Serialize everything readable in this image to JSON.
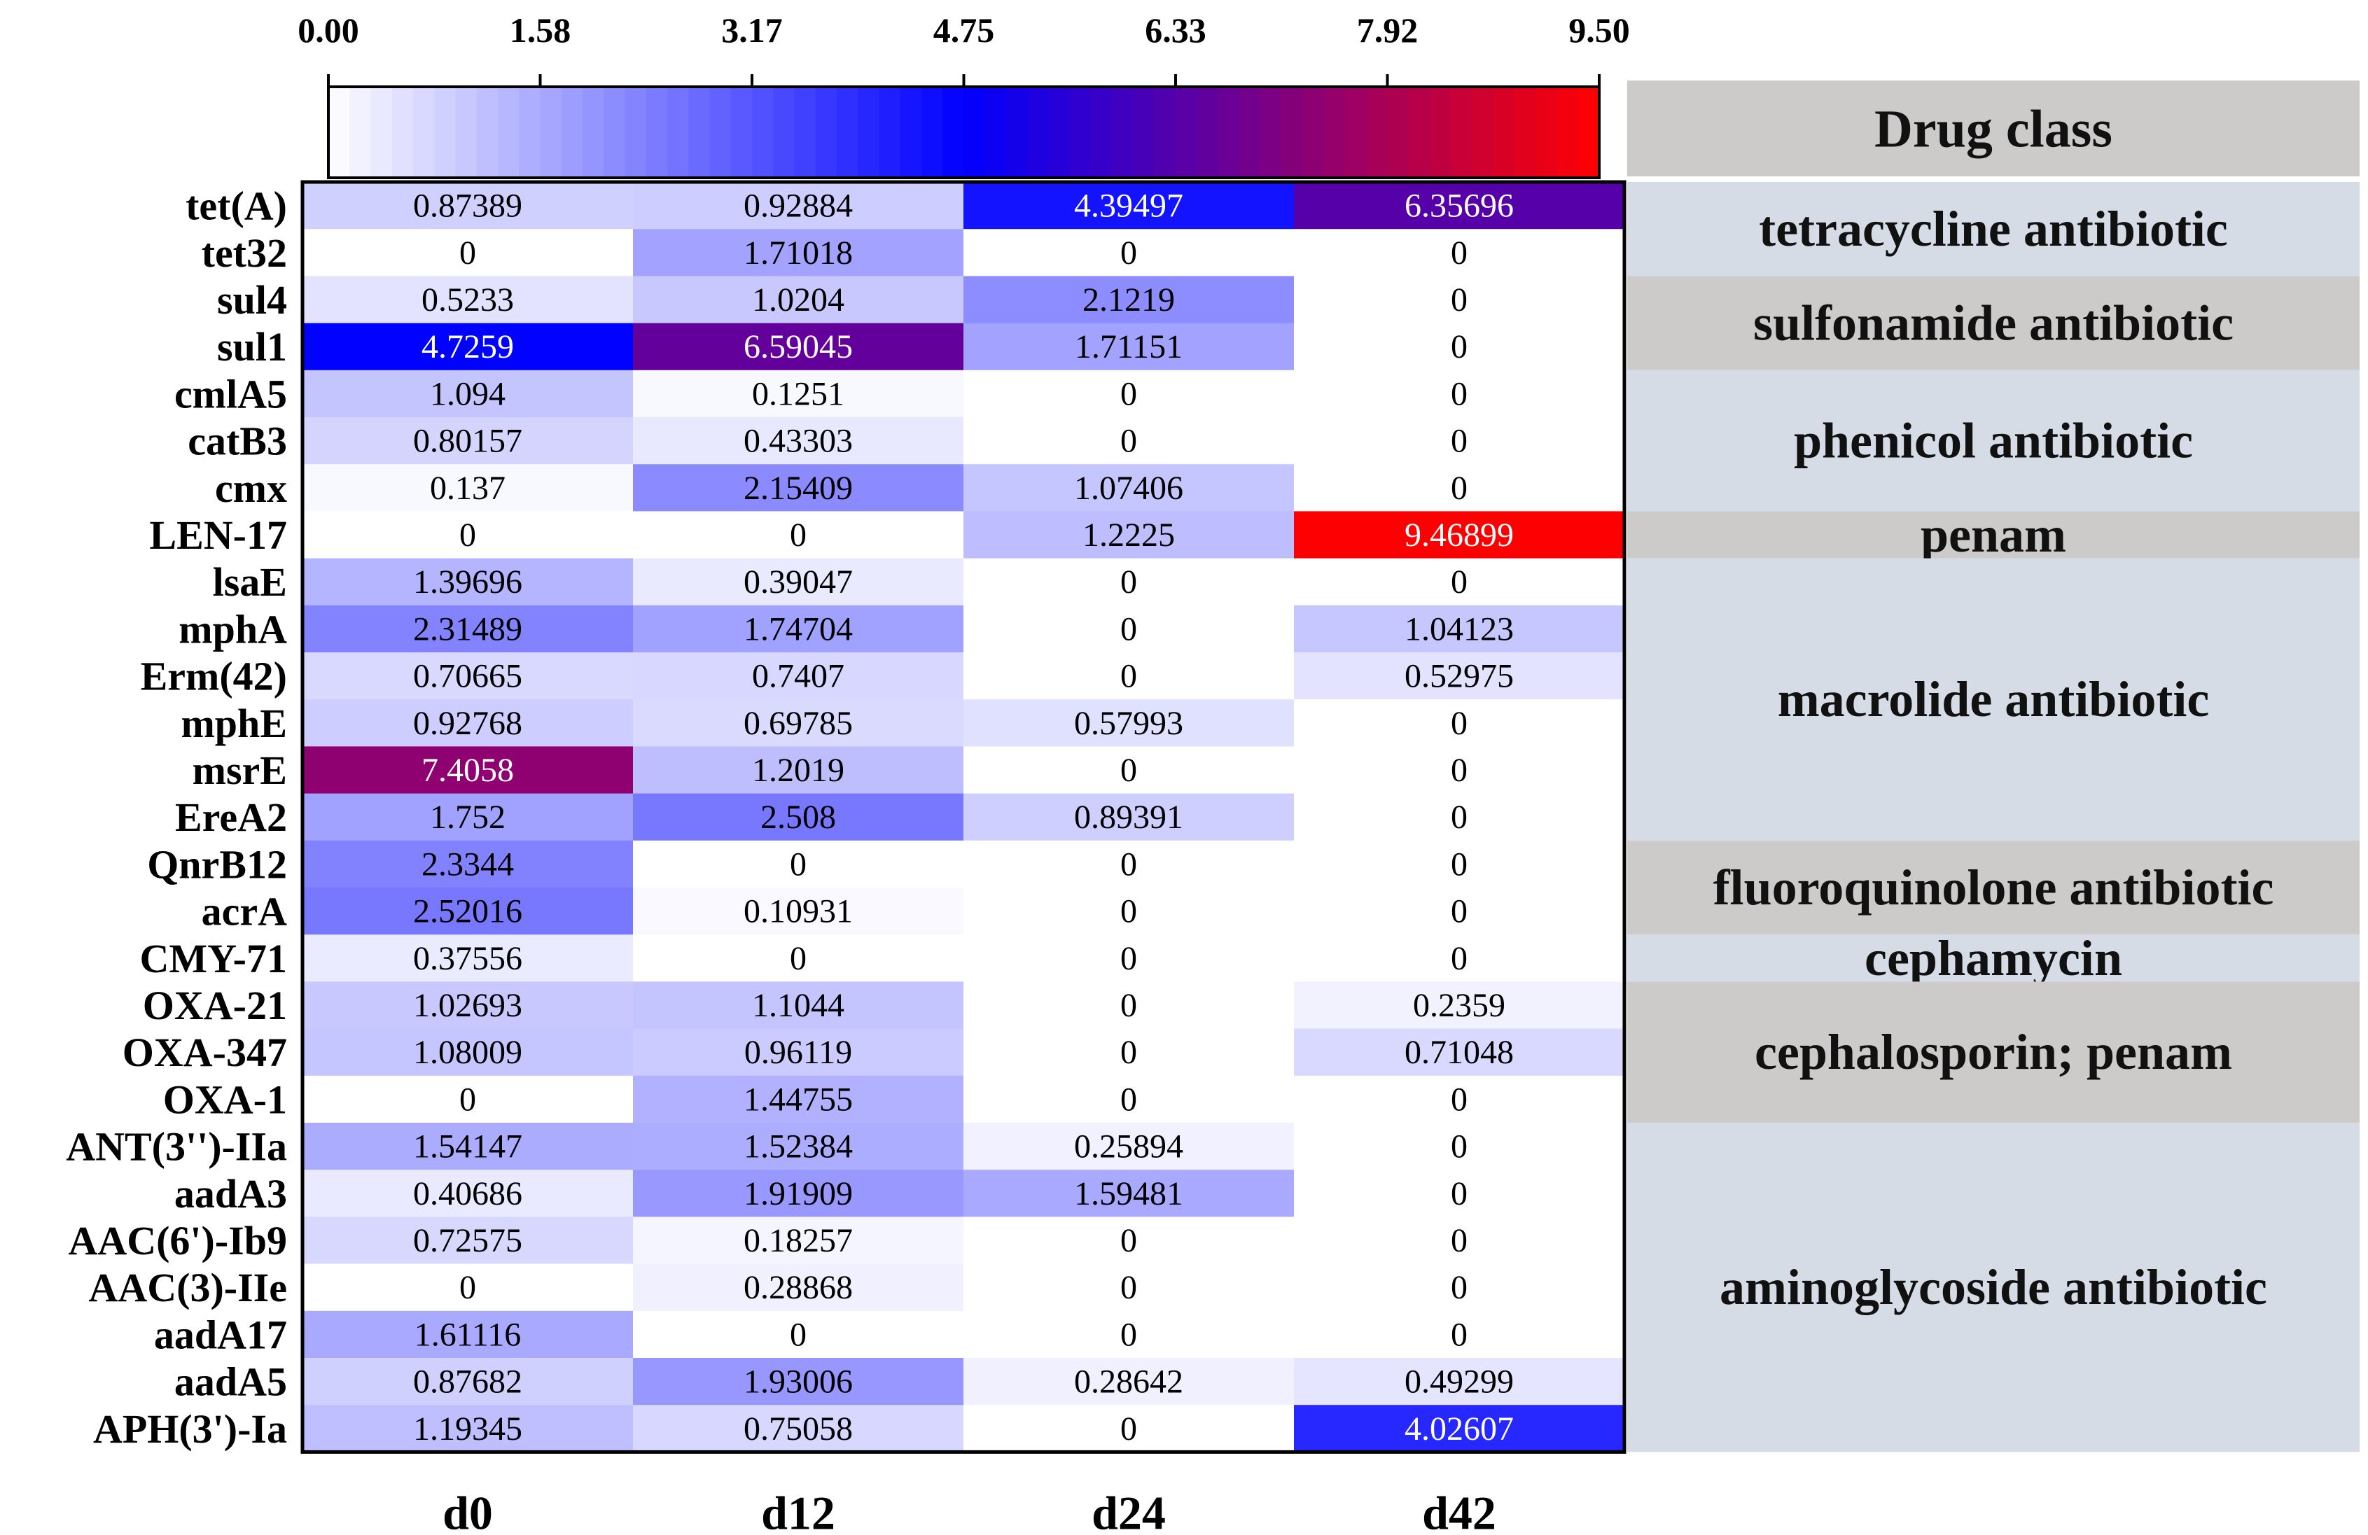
{
  "chart_data": {
    "type": "heatmap",
    "title": "",
    "columns": [
      "d0",
      "d12",
      "d24",
      "d42"
    ],
    "rows": [
      {
        "gene": "tet(A)",
        "values": [
          "0.87389",
          "0.92884",
          "4.39497",
          "6.35696"
        ]
      },
      {
        "gene": "tet32",
        "values": [
          "0",
          "1.71018",
          "0",
          "0"
        ]
      },
      {
        "gene": "sul4",
        "values": [
          "0.5233",
          "1.0204",
          "2.1219",
          "0"
        ]
      },
      {
        "gene": "sul1",
        "values": [
          "4.7259",
          "6.59045",
          "1.71151",
          "0"
        ]
      },
      {
        "gene": "cmlA5",
        "values": [
          "1.094",
          "0.1251",
          "0",
          "0"
        ]
      },
      {
        "gene": "catB3",
        "values": [
          "0.80157",
          "0.43303",
          "0",
          "0"
        ]
      },
      {
        "gene": "cmx",
        "values": [
          "0.137",
          "2.15409",
          "1.07406",
          "0"
        ]
      },
      {
        "gene": "LEN-17",
        "values": [
          "0",
          "0",
          "1.2225",
          "9.46899"
        ]
      },
      {
        "gene": "lsaE",
        "values": [
          "1.39696",
          "0.39047",
          "0",
          "0"
        ]
      },
      {
        "gene": "mphA",
        "values": [
          "2.31489",
          "1.74704",
          "0",
          "1.04123"
        ]
      },
      {
        "gene": "Erm(42)",
        "values": [
          "0.70665",
          "0.7407",
          "0",
          "0.52975"
        ]
      },
      {
        "gene": "mphE",
        "values": [
          "0.92768",
          "0.69785",
          "0.57993",
          "0"
        ]
      },
      {
        "gene": "msrE",
        "values": [
          "7.4058",
          "1.2019",
          "0",
          "0"
        ]
      },
      {
        "gene": "EreA2",
        "values": [
          "1.752",
          "2.508",
          "0.89391",
          "0"
        ]
      },
      {
        "gene": "QnrB12",
        "values": [
          "2.3344",
          "0",
          "0",
          "0"
        ]
      },
      {
        "gene": "acrA",
        "values": [
          "2.52016",
          "0.10931",
          "0",
          "0"
        ]
      },
      {
        "gene": "CMY-71",
        "values": [
          "0.37556",
          "0",
          "0",
          "0"
        ]
      },
      {
        "gene": "OXA-21",
        "values": [
          "1.02693",
          "1.1044",
          "0",
          "0.2359"
        ]
      },
      {
        "gene": "OXA-347",
        "values": [
          "1.08009",
          "0.96119",
          "0",
          "0.71048"
        ]
      },
      {
        "gene": "OXA-1",
        "values": [
          "0",
          "1.44755",
          "0",
          "0"
        ]
      },
      {
        "gene": "ANT(3'')-IIa",
        "values": [
          "1.54147",
          "1.52384",
          "0.25894",
          "0"
        ]
      },
      {
        "gene": "aadA3",
        "values": [
          "0.40686",
          "1.91909",
          "1.59481",
          "0"
        ]
      },
      {
        "gene": "AAC(6')-Ib9",
        "values": [
          "0.72575",
          "0.18257",
          "0",
          "0"
        ]
      },
      {
        "gene": "AAC(3)-IIe",
        "values": [
          "0",
          "0.28868",
          "0",
          "0"
        ]
      },
      {
        "gene": "aadA17",
        "values": [
          "1.61116",
          "0",
          "0",
          "0"
        ]
      },
      {
        "gene": "aadA5",
        "values": [
          "0.87682",
          "1.93006",
          "0.28642",
          "0.49299"
        ]
      },
      {
        "gene": "APH(3')-Ia",
        "values": [
          "1.19345",
          "0.75058",
          "0",
          "4.02607"
        ]
      }
    ],
    "colorbar": {
      "ticks": [
        "0.00",
        "1.58",
        "3.17",
        "4.75",
        "6.33",
        "7.92",
        "9.50"
      ],
      "range": [
        0,
        9.5
      ],
      "colors": [
        "#ffffff",
        "#0000ff",
        "#ff0000"
      ],
      "position": "top"
    },
    "drug_class_header": "Drug class",
    "drug_classes": [
      {
        "label": "tetracycline antibiotic",
        "rows": [
          0,
          1
        ]
      },
      {
        "label": "sulfonamide antibiotic",
        "rows": [
          2,
          3
        ]
      },
      {
        "label": "phenicol antibiotic",
        "rows": [
          4,
          6
        ]
      },
      {
        "label": "penam",
        "rows": [
          7,
          7
        ]
      },
      {
        "label": "macrolide antibiotic",
        "rows": [
          8,
          13
        ]
      },
      {
        "label": "fluoroquinolone antibiotic",
        "rows": [
          14,
          15
        ]
      },
      {
        "label": "cephamycin",
        "rows": [
          16,
          16
        ]
      },
      {
        "label": "cephalosporin; penam",
        "rows": [
          17,
          19
        ]
      },
      {
        "label": "aminoglycoside antibiotic",
        "rows": [
          20,
          26
        ]
      }
    ],
    "class_colors": [
      "#d5dce6",
      "#cdcaca"
    ]
  }
}
